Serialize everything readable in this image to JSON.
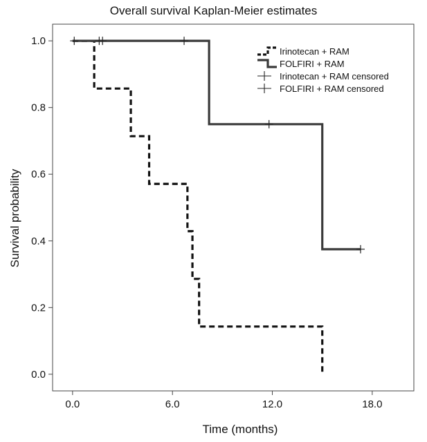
{
  "chart_data": {
    "type": "line",
    "title": "Overall survival Kaplan-Meier estimates",
    "xlabel": "Time (months)",
    "ylabel": "Survival probability",
    "xlim": [
      -1.2,
      20.5
    ],
    "ylim": [
      -0.05,
      1.05
    ],
    "xticks": [
      0,
      6,
      12,
      18
    ],
    "xtick_labels": [
      "0.0",
      "6.0",
      "12.0",
      "18.0"
    ],
    "yticks": [
      0,
      0.2,
      0.4,
      0.6,
      0.8,
      1.0
    ],
    "ytick_labels": [
      "0.0",
      "0.2",
      "0.4",
      "0.6",
      "0.8",
      "1.0"
    ],
    "grid": false,
    "legend_position": "top-right",
    "series": [
      {
        "name": "Irinotecan + RAM",
        "style": "dashed",
        "color": "#111111",
        "steps": [
          {
            "t": 0,
            "s": 1.0
          },
          {
            "t": 1.3,
            "s": 0.857
          },
          {
            "t": 3.5,
            "s": 0.714
          },
          {
            "t": 4.6,
            "s": 0.571
          },
          {
            "t": 6.9,
            "s": 0.429
          },
          {
            "t": 7.2,
            "s": 0.286
          },
          {
            "t": 7.6,
            "s": 0.143
          },
          {
            "t": 15.0,
            "s": 0.0
          }
        ],
        "censored": []
      },
      {
        "name": "FOLFIRI + RAM",
        "style": "solid",
        "color": "#3a3a3a",
        "steps": [
          {
            "t": 0,
            "s": 1.0
          },
          {
            "t": 8.2,
            "s": 0.75
          },
          {
            "t": 15.0,
            "s": 0.375
          }
        ],
        "end_t": 17.3,
        "censored": [
          {
            "t": 0.1,
            "s": 1.0
          },
          {
            "t": 1.6,
            "s": 1.0
          },
          {
            "t": 1.8,
            "s": 1.0
          },
          {
            "t": 6.7,
            "s": 1.0
          },
          {
            "t": 11.8,
            "s": 0.75
          },
          {
            "t": 17.3,
            "s": 0.375
          }
        ]
      }
    ],
    "legend": [
      "Irinotecan + RAM",
      "FOLFIRI + RAM",
      "Irinotecan + RAM censored",
      "FOLFIRI + RAM censored"
    ]
  }
}
